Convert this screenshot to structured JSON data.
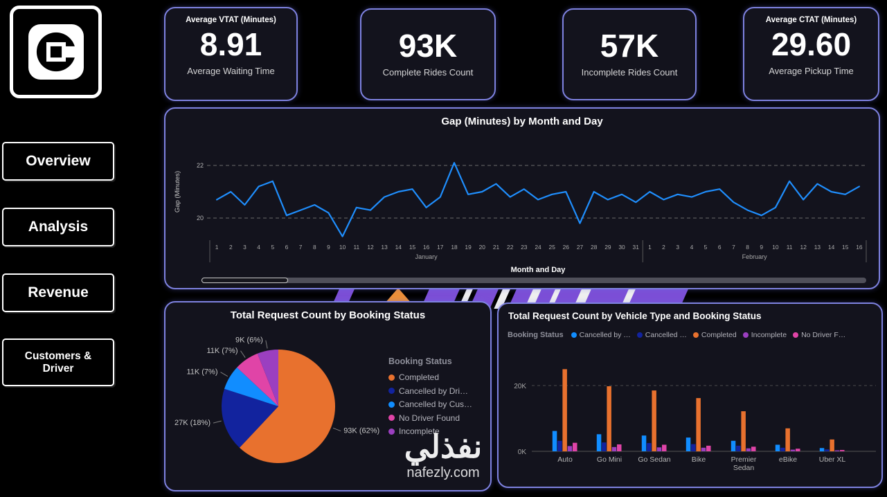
{
  "sidebar": {
    "logo_name": "uber-logo",
    "items": [
      {
        "label": "Overview"
      },
      {
        "label": "Analysis"
      },
      {
        "label": "Revenue"
      },
      {
        "label": "Customers & Driver"
      }
    ]
  },
  "kpis": [
    {
      "title": "Average VTAT (Minutes)",
      "value": "8.91",
      "subtitle": "Average Waiting Time"
    },
    {
      "title": "",
      "value": "93K",
      "subtitle": "Complete Rides Count"
    },
    {
      "title": "",
      "value": "57K",
      "subtitle": "Incomplete Rides Count"
    },
    {
      "title": "Average CTAT (Minutes)",
      "value": "29.60",
      "subtitle": "Average Pickup Time"
    }
  ],
  "colors": {
    "background": "#000000",
    "panel_background": "#13131d",
    "panel_border": "#7e82e0",
    "line_blue": "#1F8EFD",
    "completed_orange": "#E8712E",
    "cancelled_driver_dark_blue": "#12239E",
    "cancelled_customer_blue": "#118DFF",
    "no_driver_pink": "#E044A7",
    "incomplete_purple": "#9B3FC0"
  },
  "watermark": {
    "arabic": "نفذلي",
    "domain": "nafezly.com"
  },
  "chart_data": [
    {
      "type": "line",
      "title": "Gap (Minutes) by Month and Day",
      "xlabel": "Month and Day",
      "ylabel": "Gap (Minutes)",
      "ylim": [
        19,
        22.6
      ],
      "yticks": [
        20,
        22
      ],
      "grid": "dashed-horizontal",
      "line_color": "#1F8EFD",
      "month_groups": [
        {
          "name": "January",
          "count": 31
        },
        {
          "name": "February",
          "count": 16
        }
      ],
      "x": [
        "1",
        "2",
        "3",
        "4",
        "5",
        "6",
        "7",
        "8",
        "9",
        "10",
        "11",
        "12",
        "13",
        "14",
        "15",
        "16",
        "17",
        "18",
        "19",
        "20",
        "21",
        "22",
        "23",
        "24",
        "25",
        "26",
        "27",
        "28",
        "29",
        "30",
        "31",
        "1",
        "2",
        "3",
        "4",
        "5",
        "6",
        "7",
        "8",
        "9",
        "10",
        "11",
        "12",
        "13",
        "14",
        "15",
        "16"
      ],
      "values": [
        20.7,
        21.0,
        20.5,
        21.2,
        21.4,
        20.1,
        20.3,
        20.5,
        20.2,
        19.3,
        20.4,
        20.3,
        20.8,
        21.0,
        21.1,
        20.4,
        20.8,
        22.1,
        20.9,
        21.0,
        21.3,
        20.8,
        21.1,
        20.7,
        20.9,
        21.0,
        19.8,
        21.0,
        20.7,
        20.9,
        20.6,
        21.0,
        20.7,
        20.9,
        20.8,
        21.0,
        21.1,
        20.6,
        20.3,
        20.1,
        20.4,
        21.4,
        20.7,
        21.3,
        21.0,
        20.9,
        21.2
      ]
    },
    {
      "type": "pie",
      "title": "Total Request Count by Booking Status",
      "legend_title": "Booking Status",
      "legend_position": "right",
      "slices": [
        {
          "name": "Completed",
          "value_k": 93,
          "pct": 62,
          "label": "93K (62%)",
          "color": "#E8712E"
        },
        {
          "name": "Cancelled by Driver",
          "value_k": 27,
          "pct": 18,
          "label": "27K (18%)",
          "color": "#12239E"
        },
        {
          "name": "Cancelled by Customer",
          "value_k": 11,
          "pct": 7,
          "label": "11K (7%)",
          "color": "#118DFF"
        },
        {
          "name": "No Driver Found",
          "value_k": 11,
          "pct": 7,
          "label": "11K (7%)",
          "color": "#E044A7"
        },
        {
          "name": "Incomplete",
          "value_k": 9,
          "pct": 6,
          "label": "9K (6%)",
          "color": "#9B3FC0"
        }
      ],
      "legend_items": [
        {
          "label": "Completed",
          "color": "#E8712E"
        },
        {
          "label": "Cancelled by Dri…",
          "color": "#12239E"
        },
        {
          "label": "Cancelled by Cus…",
          "color": "#118DFF"
        },
        {
          "label": "No Driver Found",
          "color": "#E044A7"
        },
        {
          "label": "Incomplete",
          "color": "#9B3FC0"
        }
      ]
    },
    {
      "type": "bar",
      "title": "Total Request Count by Vehicle Type and Booking Status",
      "legend_title": "Booking Status",
      "legend_position": "top",
      "categories": [
        "Auto",
        "Go Mini",
        "Go Sedan",
        "Bike",
        "Premier\nSedan",
        "eBike",
        "Uber XL"
      ],
      "series": [
        {
          "name": "Cancelled by …",
          "color": "#118DFF",
          "values": [
            6.2,
            5.2,
            4.8,
            4.2,
            3.2,
            2.0,
            1.0
          ]
        },
        {
          "name": "Cancelled …",
          "color": "#12239E",
          "values": [
            3.2,
            2.7,
            2.5,
            2.2,
            1.7,
            1.1,
            0.6
          ]
        },
        {
          "name": "Completed",
          "color": "#E8712E",
          "values": [
            25.0,
            19.8,
            18.5,
            16.2,
            12.2,
            7.0,
            3.6
          ]
        },
        {
          "name": "Incomplete",
          "color": "#9B3FC0",
          "values": [
            1.6,
            1.3,
            1.2,
            1.1,
            0.9,
            0.5,
            0.3
          ]
        },
        {
          "name": "No Driver F…",
          "color": "#E044A7",
          "values": [
            2.6,
            2.1,
            2.0,
            1.7,
            1.4,
            0.8,
            0.4
          ]
        }
      ],
      "ylim": [
        0,
        26
      ],
      "yticks": [
        "0K",
        "20K"
      ],
      "unit": "K requests"
    }
  ]
}
